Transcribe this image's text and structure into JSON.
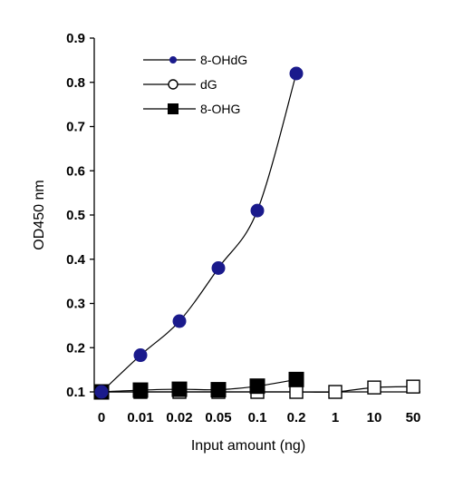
{
  "chart_data": {
    "type": "line",
    "categories": [
      "0",
      "0.01",
      "0.02",
      "0.05",
      "0.1",
      "0.2",
      "1",
      "10",
      "50"
    ],
    "xlabel": "Input amount (ng)",
    "ylabel": "OD450 nm",
    "ylim": [
      0.1,
      0.9
    ],
    "yticks": [
      "0.1",
      "0.2",
      "0.3",
      "0.4",
      "0.5",
      "0.6",
      "0.7",
      "0.8",
      "0.9"
    ],
    "grid": false,
    "legend_position": "top-left",
    "series": [
      {
        "name": "8-OHdG",
        "marker": "filled-circle",
        "color": "#1a1a8c",
        "values": [
          0.1,
          0.183,
          0.26,
          0.38,
          0.51,
          0.82,
          null,
          null,
          null
        ]
      },
      {
        "name": "dG",
        "marker": "open-square",
        "color": "#000000",
        "values": [
          0.1,
          0.1,
          0.1,
          0.1,
          0.1,
          0.1,
          0.1,
          0.11,
          0.112
        ]
      },
      {
        "name": "8-OHG",
        "marker": "filled-square",
        "color": "#000000",
        "values": [
          0.1,
          0.104,
          0.106,
          0.105,
          0.113,
          0.128,
          null,
          null,
          null
        ]
      }
    ]
  }
}
